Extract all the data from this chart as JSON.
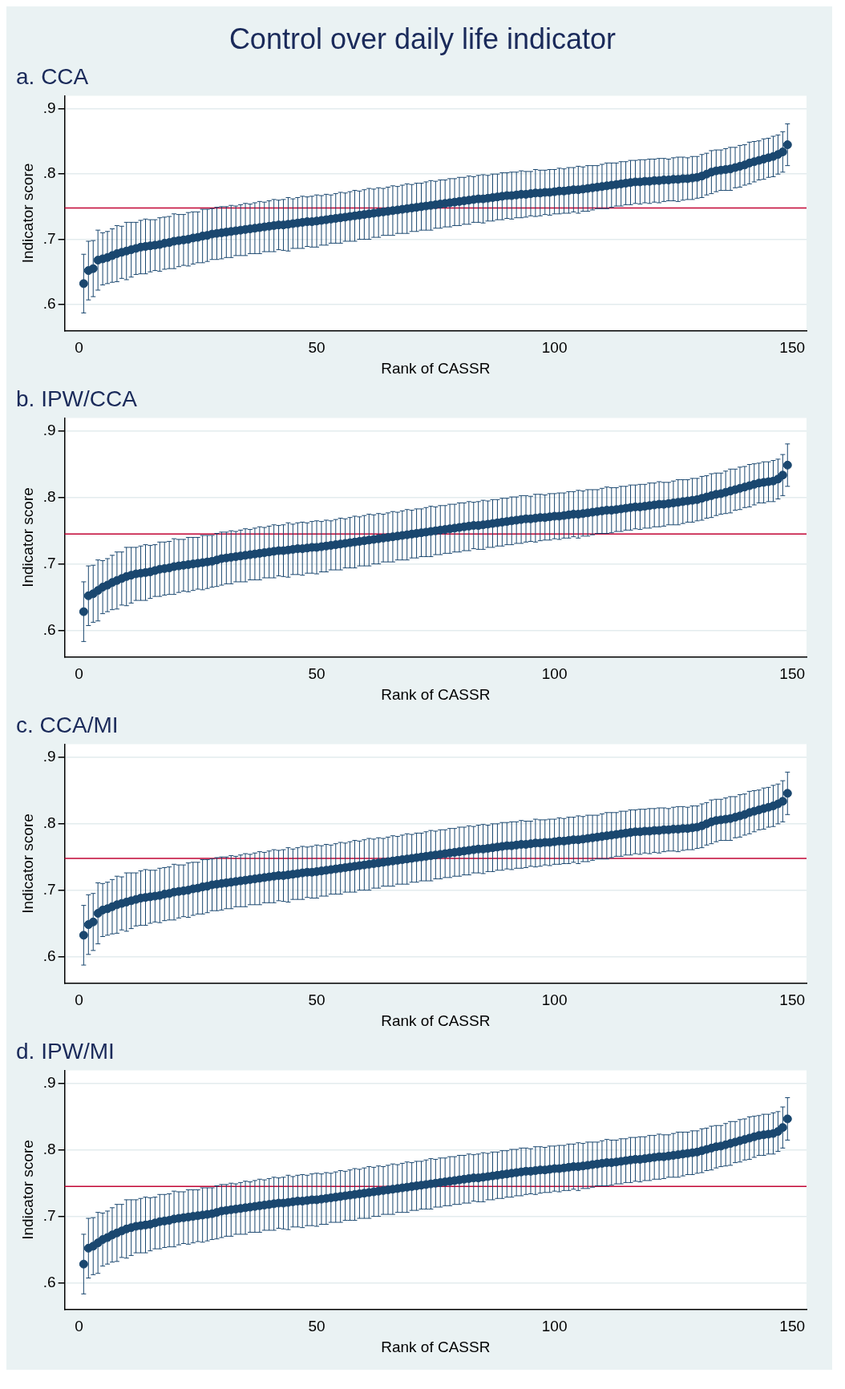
{
  "chart_data": [
    {
      "type": "scatter",
      "title": "Control over daily life indicator",
      "subtitle": "a. CCA",
      "xlabel": "Rank of CASSR",
      "ylabel": "Indicator score",
      "color": "#1a476f",
      "marker": "circle",
      "grid": "y",
      "legend": false,
      "x": [
        1,
        2,
        3,
        4,
        5,
        6,
        7,
        8,
        9,
        10,
        11,
        12,
        13,
        14,
        15,
        16,
        17,
        18,
        19,
        20,
        21,
        22,
        23,
        24,
        25,
        26,
        27,
        28,
        29,
        30,
        31,
        32,
        33,
        34,
        35,
        36,
        37,
        38,
        39,
        40,
        41,
        42,
        43,
        44,
        45,
        46,
        47,
        48,
        49,
        50,
        51,
        52,
        53,
        54,
        55,
        56,
        57,
        58,
        59,
        60,
        61,
        62,
        63,
        64,
        65,
        66,
        67,
        68,
        69,
        70,
        71,
        72,
        73,
        74,
        75,
        76,
        77,
        78,
        79,
        80,
        81,
        82,
        83,
        84,
        85,
        86,
        87,
        88,
        89,
        90,
        91,
        92,
        93,
        94,
        95,
        96,
        97,
        98,
        99,
        100,
        101,
        102,
        103,
        104,
        105,
        106,
        107,
        108,
        109,
        110,
        111,
        112,
        113,
        114,
        115,
        116,
        117,
        118,
        119,
        120,
        121,
        122,
        123,
        124,
        125,
        126,
        127,
        128,
        129,
        130,
        131,
        132,
        133,
        134,
        135,
        136,
        137,
        138,
        139,
        140,
        141,
        142,
        143,
        144,
        145,
        146,
        147,
        148,
        149
      ],
      "values": [
        0.632,
        0.652,
        0.655,
        0.668,
        0.67,
        0.672,
        0.675,
        0.678,
        0.68,
        0.682,
        0.684,
        0.686,
        0.688,
        0.689,
        0.69,
        0.691,
        0.692,
        0.694,
        0.695,
        0.697,
        0.698,
        0.699,
        0.7,
        0.702,
        0.703,
        0.705,
        0.706,
        0.708,
        0.709,
        0.71,
        0.711,
        0.712,
        0.713,
        0.714,
        0.715,
        0.716,
        0.717,
        0.718,
        0.719,
        0.72,
        0.721,
        0.722,
        0.722,
        0.723,
        0.724,
        0.725,
        0.726,
        0.727,
        0.727,
        0.728,
        0.729,
        0.73,
        0.731,
        0.732,
        0.733,
        0.734,
        0.735,
        0.736,
        0.737,
        0.738,
        0.739,
        0.74,
        0.741,
        0.742,
        0.743,
        0.744,
        0.745,
        0.746,
        0.747,
        0.748,
        0.749,
        0.75,
        0.751,
        0.752,
        0.753,
        0.754,
        0.755,
        0.756,
        0.757,
        0.758,
        0.759,
        0.76,
        0.761,
        0.762,
        0.762,
        0.763,
        0.764,
        0.765,
        0.766,
        0.767,
        0.767,
        0.768,
        0.769,
        0.769,
        0.77,
        0.771,
        0.771,
        0.772,
        0.772,
        0.773,
        0.774,
        0.774,
        0.775,
        0.776,
        0.776,
        0.777,
        0.778,
        0.779,
        0.78,
        0.781,
        0.782,
        0.783,
        0.784,
        0.785,
        0.786,
        0.787,
        0.788,
        0.788,
        0.789,
        0.789,
        0.79,
        0.79,
        0.791,
        0.791,
        0.792,
        0.792,
        0.793,
        0.793,
        0.794,
        0.795,
        0.797,
        0.8,
        0.803,
        0.805,
        0.806,
        0.807,
        0.808,
        0.81,
        0.812,
        0.814,
        0.817,
        0.819,
        0.821,
        0.823,
        0.825,
        0.827,
        0.83,
        0.834,
        0.845
      ],
      "errors": [
        0.045,
        0.045,
        0.043,
        0.046,
        0.04,
        0.04,
        0.041,
        0.043,
        0.04,
        0.044,
        0.042,
        0.04,
        0.041,
        0.042,
        0.04,
        0.039,
        0.041,
        0.04,
        0.04,
        0.042,
        0.04,
        0.039,
        0.041,
        0.04,
        0.039,
        0.041,
        0.04,
        0.039,
        0.04,
        0.04,
        0.039,
        0.04,
        0.038,
        0.039,
        0.04,
        0.038,
        0.039,
        0.04,
        0.038,
        0.039,
        0.04,
        0.038,
        0.039,
        0.041,
        0.038,
        0.039,
        0.04,
        0.038,
        0.039,
        0.04,
        0.038,
        0.039,
        0.037,
        0.038,
        0.039,
        0.037,
        0.038,
        0.039,
        0.037,
        0.038,
        0.039,
        0.037,
        0.038,
        0.036,
        0.037,
        0.038,
        0.036,
        0.037,
        0.038,
        0.036,
        0.037,
        0.036,
        0.037,
        0.038,
        0.036,
        0.037,
        0.036,
        0.037,
        0.036,
        0.037,
        0.036,
        0.037,
        0.035,
        0.036,
        0.037,
        0.035,
        0.036,
        0.035,
        0.036,
        0.035,
        0.036,
        0.035,
        0.036,
        0.035,
        0.034,
        0.036,
        0.035,
        0.034,
        0.035,
        0.034,
        0.035,
        0.034,
        0.035,
        0.034,
        0.036,
        0.034,
        0.035,
        0.034,
        0.033,
        0.034,
        0.035,
        0.034,
        0.033,
        0.034,
        0.033,
        0.034,
        0.033,
        0.034,
        0.033,
        0.034,
        0.033,
        0.034,
        0.033,
        0.032,
        0.033,
        0.034,
        0.033,
        0.032,
        0.033,
        0.032,
        0.033,
        0.032,
        0.033,
        0.032,
        0.031,
        0.032,
        0.033,
        0.031,
        0.032,
        0.031,
        0.032,
        0.031,
        0.03,
        0.031,
        0.03,
        0.031,
        0.03,
        0.031,
        0.032
      ],
      "xlim": [
        -3,
        153
      ],
      "xticks": [
        0,
        50,
        100,
        150
      ],
      "ylim": [
        0.56,
        0.92
      ],
      "yticks": [
        {
          "value": 0.6,
          "label": ".6"
        },
        {
          "value": 0.7,
          "label": ".7"
        },
        {
          "value": 0.8,
          "label": ".8"
        },
        {
          "value": 0.9,
          "label": ".9"
        }
      ],
      "ref_lines": [
        {
          "axis": "y",
          "value": 0.748,
          "color": "#c10534"
        }
      ]
    },
    {
      "type": "scatter",
      "subtitle": "b. IPW/CCA",
      "xlabel": "Rank of CASSR",
      "ylabel": "Indicator score",
      "color": "#1a476f",
      "marker": "circle",
      "grid": "y",
      "legend": false,
      "x": [
        1,
        2,
        3,
        4,
        5,
        6,
        7,
        8,
        9,
        10,
        11,
        12,
        13,
        14,
        15,
        16,
        17,
        18,
        19,
        20,
        21,
        22,
        23,
        24,
        25,
        26,
        27,
        28,
        29,
        30,
        31,
        32,
        33,
        34,
        35,
        36,
        37,
        38,
        39,
        40,
        41,
        42,
        43,
        44,
        45,
        46,
        47,
        48,
        49,
        50,
        51,
        52,
        53,
        54,
        55,
        56,
        57,
        58,
        59,
        60,
        61,
        62,
        63,
        64,
        65,
        66,
        67,
        68,
        69,
        70,
        71,
        72,
        73,
        74,
        75,
        76,
        77,
        78,
        79,
        80,
        81,
        82,
        83,
        84,
        85,
        86,
        87,
        88,
        89,
        90,
        91,
        92,
        93,
        94,
        95,
        96,
        97,
        98,
        99,
        100,
        101,
        102,
        103,
        104,
        105,
        106,
        107,
        108,
        109,
        110,
        111,
        112,
        113,
        114,
        115,
        116,
        117,
        118,
        119,
        120,
        121,
        122,
        123,
        124,
        125,
        126,
        127,
        128,
        129,
        130,
        131,
        132,
        133,
        134,
        135,
        136,
        137,
        138,
        139,
        140,
        141,
        142,
        143,
        144,
        145,
        146,
        147,
        148,
        149
      ],
      "values": [
        0.628,
        0.652,
        0.655,
        0.66,
        0.665,
        0.668,
        0.672,
        0.675,
        0.678,
        0.681,
        0.683,
        0.685,
        0.686,
        0.687,
        0.688,
        0.69,
        0.692,
        0.693,
        0.694,
        0.696,
        0.697,
        0.698,
        0.699,
        0.7,
        0.701,
        0.702,
        0.703,
        0.704,
        0.706,
        0.708,
        0.709,
        0.71,
        0.711,
        0.712,
        0.713,
        0.714,
        0.715,
        0.716,
        0.717,
        0.718,
        0.719,
        0.72,
        0.72,
        0.721,
        0.722,
        0.723,
        0.723,
        0.724,
        0.725,
        0.725,
        0.726,
        0.727,
        0.728,
        0.729,
        0.73,
        0.731,
        0.732,
        0.733,
        0.734,
        0.735,
        0.736,
        0.737,
        0.738,
        0.739,
        0.74,
        0.741,
        0.742,
        0.743,
        0.744,
        0.745,
        0.746,
        0.747,
        0.748,
        0.749,
        0.75,
        0.751,
        0.752,
        0.753,
        0.754,
        0.755,
        0.756,
        0.757,
        0.758,
        0.758,
        0.759,
        0.76,
        0.761,
        0.762,
        0.763,
        0.764,
        0.765,
        0.766,
        0.767,
        0.768,
        0.768,
        0.769,
        0.77,
        0.77,
        0.771,
        0.772,
        0.772,
        0.773,
        0.774,
        0.775,
        0.775,
        0.776,
        0.777,
        0.778,
        0.779,
        0.78,
        0.781,
        0.781,
        0.782,
        0.783,
        0.784,
        0.785,
        0.786,
        0.786,
        0.787,
        0.788,
        0.789,
        0.79,
        0.79,
        0.791,
        0.792,
        0.793,
        0.794,
        0.795,
        0.796,
        0.797,
        0.799,
        0.801,
        0.803,
        0.805,
        0.806,
        0.808,
        0.81,
        0.812,
        0.814,
        0.816,
        0.818,
        0.82,
        0.822,
        0.823,
        0.824,
        0.825,
        0.828,
        0.834,
        0.849
      ],
      "errors": [
        0.045,
        0.045,
        0.043,
        0.046,
        0.04,
        0.04,
        0.041,
        0.043,
        0.04,
        0.044,
        0.042,
        0.04,
        0.041,
        0.042,
        0.04,
        0.039,
        0.041,
        0.04,
        0.04,
        0.042,
        0.04,
        0.039,
        0.041,
        0.04,
        0.039,
        0.041,
        0.04,
        0.039,
        0.04,
        0.04,
        0.039,
        0.04,
        0.038,
        0.039,
        0.04,
        0.038,
        0.039,
        0.04,
        0.038,
        0.039,
        0.04,
        0.038,
        0.039,
        0.041,
        0.038,
        0.039,
        0.04,
        0.038,
        0.039,
        0.04,
        0.038,
        0.039,
        0.037,
        0.038,
        0.039,
        0.037,
        0.038,
        0.039,
        0.037,
        0.038,
        0.039,
        0.037,
        0.038,
        0.036,
        0.037,
        0.038,
        0.036,
        0.037,
        0.038,
        0.036,
        0.037,
        0.036,
        0.037,
        0.038,
        0.036,
        0.037,
        0.036,
        0.037,
        0.036,
        0.037,
        0.036,
        0.037,
        0.035,
        0.036,
        0.037,
        0.035,
        0.036,
        0.035,
        0.036,
        0.035,
        0.036,
        0.035,
        0.036,
        0.035,
        0.034,
        0.036,
        0.035,
        0.034,
        0.035,
        0.034,
        0.035,
        0.034,
        0.035,
        0.034,
        0.036,
        0.034,
        0.035,
        0.034,
        0.033,
        0.034,
        0.035,
        0.034,
        0.033,
        0.034,
        0.033,
        0.034,
        0.033,
        0.034,
        0.033,
        0.034,
        0.033,
        0.034,
        0.033,
        0.032,
        0.033,
        0.034,
        0.033,
        0.032,
        0.033,
        0.032,
        0.033,
        0.032,
        0.033,
        0.032,
        0.031,
        0.032,
        0.033,
        0.031,
        0.032,
        0.031,
        0.032,
        0.031,
        0.03,
        0.031,
        0.03,
        0.031,
        0.03,
        0.031,
        0.032
      ],
      "xlim": [
        -3,
        153
      ],
      "xticks": [
        0,
        50,
        100,
        150
      ],
      "ylim": [
        0.56,
        0.92
      ],
      "yticks": [
        {
          "value": 0.6,
          "label": ".6"
        },
        {
          "value": 0.7,
          "label": ".7"
        },
        {
          "value": 0.8,
          "label": ".8"
        },
        {
          "value": 0.9,
          "label": ".9"
        }
      ],
      "ref_lines": [
        {
          "axis": "y",
          "value": 0.745,
          "color": "#c10534"
        }
      ]
    },
    {
      "type": "scatter",
      "subtitle": "c. CCA/MI",
      "xlabel": "Rank of CASSR",
      "ylabel": "Indicator score",
      "color": "#1a476f",
      "marker": "circle",
      "grid": "y",
      "legend": false,
      "x": [
        1,
        2,
        3,
        4,
        5,
        6,
        7,
        8,
        9,
        10,
        11,
        12,
        13,
        14,
        15,
        16,
        17,
        18,
        19,
        20,
        21,
        22,
        23,
        24,
        25,
        26,
        27,
        28,
        29,
        30,
        31,
        32,
        33,
        34,
        35,
        36,
        37,
        38,
        39,
        40,
        41,
        42,
        43,
        44,
        45,
        46,
        47,
        48,
        49,
        50,
        51,
        52,
        53,
        54,
        55,
        56,
        57,
        58,
        59,
        60,
        61,
        62,
        63,
        64,
        65,
        66,
        67,
        68,
        69,
        70,
        71,
        72,
        73,
        74,
        75,
        76,
        77,
        78,
        79,
        80,
        81,
        82,
        83,
        84,
        85,
        86,
        87,
        88,
        89,
        90,
        91,
        92,
        93,
        94,
        95,
        96,
        97,
        98,
        99,
        100,
        101,
        102,
        103,
        104,
        105,
        106,
        107,
        108,
        109,
        110,
        111,
        112,
        113,
        114,
        115,
        116,
        117,
        118,
        119,
        120,
        121,
        122,
        123,
        124,
        125,
        126,
        127,
        128,
        129,
        130,
        131,
        132,
        133,
        134,
        135,
        136,
        137,
        138,
        139,
        140,
        141,
        142,
        143,
        144,
        145,
        146,
        147,
        148,
        149
      ],
      "values": [
        0.632,
        0.648,
        0.652,
        0.665,
        0.67,
        0.672,
        0.675,
        0.678,
        0.68,
        0.682,
        0.684,
        0.686,
        0.688,
        0.689,
        0.69,
        0.691,
        0.692,
        0.694,
        0.695,
        0.697,
        0.698,
        0.699,
        0.7,
        0.702,
        0.703,
        0.705,
        0.706,
        0.708,
        0.709,
        0.71,
        0.711,
        0.712,
        0.713,
        0.714,
        0.715,
        0.716,
        0.717,
        0.718,
        0.719,
        0.72,
        0.721,
        0.722,
        0.722,
        0.723,
        0.724,
        0.725,
        0.726,
        0.727,
        0.727,
        0.728,
        0.729,
        0.73,
        0.731,
        0.732,
        0.733,
        0.734,
        0.735,
        0.736,
        0.737,
        0.738,
        0.739,
        0.74,
        0.741,
        0.742,
        0.743,
        0.744,
        0.745,
        0.746,
        0.747,
        0.748,
        0.749,
        0.75,
        0.751,
        0.752,
        0.753,
        0.754,
        0.755,
        0.756,
        0.757,
        0.758,
        0.759,
        0.76,
        0.761,
        0.762,
        0.762,
        0.763,
        0.764,
        0.765,
        0.766,
        0.767,
        0.767,
        0.768,
        0.769,
        0.769,
        0.77,
        0.771,
        0.771,
        0.772,
        0.772,
        0.773,
        0.774,
        0.774,
        0.775,
        0.776,
        0.776,
        0.777,
        0.778,
        0.779,
        0.78,
        0.781,
        0.782,
        0.783,
        0.784,
        0.785,
        0.786,
        0.787,
        0.788,
        0.788,
        0.789,
        0.789,
        0.79,
        0.79,
        0.791,
        0.791,
        0.792,
        0.792,
        0.793,
        0.793,
        0.794,
        0.795,
        0.797,
        0.8,
        0.803,
        0.805,
        0.806,
        0.807,
        0.808,
        0.81,
        0.812,
        0.814,
        0.817,
        0.819,
        0.821,
        0.823,
        0.825,
        0.827,
        0.83,
        0.834,
        0.846
      ],
      "errors": [
        0.045,
        0.045,
        0.043,
        0.046,
        0.04,
        0.04,
        0.041,
        0.043,
        0.04,
        0.044,
        0.042,
        0.04,
        0.041,
        0.042,
        0.04,
        0.039,
        0.041,
        0.04,
        0.04,
        0.042,
        0.04,
        0.039,
        0.041,
        0.04,
        0.039,
        0.041,
        0.04,
        0.039,
        0.04,
        0.04,
        0.039,
        0.04,
        0.038,
        0.039,
        0.04,
        0.038,
        0.039,
        0.04,
        0.038,
        0.039,
        0.04,
        0.038,
        0.039,
        0.041,
        0.038,
        0.039,
        0.04,
        0.038,
        0.039,
        0.04,
        0.038,
        0.039,
        0.037,
        0.038,
        0.039,
        0.037,
        0.038,
        0.039,
        0.037,
        0.038,
        0.039,
        0.037,
        0.038,
        0.036,
        0.037,
        0.038,
        0.036,
        0.037,
        0.038,
        0.036,
        0.037,
        0.036,
        0.037,
        0.038,
        0.036,
        0.037,
        0.036,
        0.037,
        0.036,
        0.037,
        0.036,
        0.037,
        0.035,
        0.036,
        0.037,
        0.035,
        0.036,
        0.035,
        0.036,
        0.035,
        0.036,
        0.035,
        0.036,
        0.035,
        0.034,
        0.036,
        0.035,
        0.034,
        0.035,
        0.034,
        0.035,
        0.034,
        0.035,
        0.034,
        0.036,
        0.034,
        0.035,
        0.034,
        0.033,
        0.034,
        0.035,
        0.034,
        0.033,
        0.034,
        0.033,
        0.034,
        0.033,
        0.034,
        0.033,
        0.034,
        0.033,
        0.034,
        0.033,
        0.032,
        0.033,
        0.034,
        0.033,
        0.032,
        0.033,
        0.032,
        0.033,
        0.032,
        0.033,
        0.032,
        0.031,
        0.032,
        0.033,
        0.031,
        0.032,
        0.031,
        0.032,
        0.031,
        0.03,
        0.031,
        0.03,
        0.031,
        0.03,
        0.031,
        0.032
      ],
      "xlim": [
        -3,
        153
      ],
      "xticks": [
        0,
        50,
        100,
        150
      ],
      "ylim": [
        0.56,
        0.92
      ],
      "yticks": [
        {
          "value": 0.6,
          "label": ".6"
        },
        {
          "value": 0.7,
          "label": ".7"
        },
        {
          "value": 0.8,
          "label": ".8"
        },
        {
          "value": 0.9,
          "label": ".9"
        }
      ],
      "ref_lines": [
        {
          "axis": "y",
          "value": 0.748,
          "color": "#c10534"
        }
      ]
    },
    {
      "type": "scatter",
      "subtitle": "d. IPW/MI",
      "xlabel": "Rank of CASSR",
      "ylabel": "Indicator score",
      "color": "#1a476f",
      "marker": "circle",
      "grid": "y",
      "legend": false,
      "x": [
        1,
        2,
        3,
        4,
        5,
        6,
        7,
        8,
        9,
        10,
        11,
        12,
        13,
        14,
        15,
        16,
        17,
        18,
        19,
        20,
        21,
        22,
        23,
        24,
        25,
        26,
        27,
        28,
        29,
        30,
        31,
        32,
        33,
        34,
        35,
        36,
        37,
        38,
        39,
        40,
        41,
        42,
        43,
        44,
        45,
        46,
        47,
        48,
        49,
        50,
        51,
        52,
        53,
        54,
        55,
        56,
        57,
        58,
        59,
        60,
        61,
        62,
        63,
        64,
        65,
        66,
        67,
        68,
        69,
        70,
        71,
        72,
        73,
        74,
        75,
        76,
        77,
        78,
        79,
        80,
        81,
        82,
        83,
        84,
        85,
        86,
        87,
        88,
        89,
        90,
        91,
        92,
        93,
        94,
        95,
        96,
        97,
        98,
        99,
        100,
        101,
        102,
        103,
        104,
        105,
        106,
        107,
        108,
        109,
        110,
        111,
        112,
        113,
        114,
        115,
        116,
        117,
        118,
        119,
        120,
        121,
        122,
        123,
        124,
        125,
        126,
        127,
        128,
        129,
        130,
        131,
        132,
        133,
        134,
        135,
        136,
        137,
        138,
        139,
        140,
        141,
        142,
        143,
        144,
        145,
        146,
        147,
        148,
        149
      ],
      "values": [
        0.628,
        0.652,
        0.655,
        0.66,
        0.665,
        0.668,
        0.672,
        0.675,
        0.678,
        0.681,
        0.683,
        0.685,
        0.686,
        0.687,
        0.688,
        0.69,
        0.692,
        0.693,
        0.694,
        0.696,
        0.697,
        0.698,
        0.699,
        0.7,
        0.701,
        0.702,
        0.703,
        0.704,
        0.706,
        0.708,
        0.709,
        0.71,
        0.711,
        0.712,
        0.713,
        0.714,
        0.715,
        0.716,
        0.717,
        0.718,
        0.719,
        0.72,
        0.72,
        0.721,
        0.722,
        0.723,
        0.723,
        0.724,
        0.725,
        0.725,
        0.726,
        0.727,
        0.728,
        0.729,
        0.73,
        0.731,
        0.732,
        0.733,
        0.734,
        0.735,
        0.736,
        0.737,
        0.738,
        0.739,
        0.74,
        0.741,
        0.742,
        0.743,
        0.744,
        0.745,
        0.746,
        0.747,
        0.748,
        0.749,
        0.75,
        0.751,
        0.752,
        0.753,
        0.754,
        0.755,
        0.756,
        0.757,
        0.758,
        0.758,
        0.759,
        0.76,
        0.761,
        0.762,
        0.763,
        0.764,
        0.765,
        0.766,
        0.767,
        0.768,
        0.768,
        0.769,
        0.77,
        0.77,
        0.771,
        0.772,
        0.772,
        0.773,
        0.774,
        0.775,
        0.775,
        0.776,
        0.777,
        0.778,
        0.779,
        0.78,
        0.781,
        0.781,
        0.782,
        0.783,
        0.784,
        0.785,
        0.786,
        0.786,
        0.787,
        0.788,
        0.789,
        0.79,
        0.79,
        0.791,
        0.792,
        0.793,
        0.794,
        0.795,
        0.796,
        0.797,
        0.799,
        0.801,
        0.803,
        0.805,
        0.806,
        0.808,
        0.81,
        0.812,
        0.814,
        0.816,
        0.818,
        0.82,
        0.822,
        0.823,
        0.824,
        0.825,
        0.828,
        0.834,
        0.847
      ],
      "errors": [
        0.045,
        0.045,
        0.043,
        0.046,
        0.04,
        0.04,
        0.041,
        0.043,
        0.04,
        0.044,
        0.042,
        0.04,
        0.041,
        0.042,
        0.04,
        0.039,
        0.041,
        0.04,
        0.04,
        0.042,
        0.04,
        0.039,
        0.041,
        0.04,
        0.039,
        0.041,
        0.04,
        0.039,
        0.04,
        0.04,
        0.039,
        0.04,
        0.038,
        0.039,
        0.04,
        0.038,
        0.039,
        0.04,
        0.038,
        0.039,
        0.04,
        0.038,
        0.039,
        0.041,
        0.038,
        0.039,
        0.04,
        0.038,
        0.039,
        0.04,
        0.038,
        0.039,
        0.037,
        0.038,
        0.039,
        0.037,
        0.038,
        0.039,
        0.037,
        0.038,
        0.039,
        0.037,
        0.038,
        0.036,
        0.037,
        0.038,
        0.036,
        0.037,
        0.038,
        0.036,
        0.037,
        0.036,
        0.037,
        0.038,
        0.036,
        0.037,
        0.036,
        0.037,
        0.036,
        0.037,
        0.036,
        0.037,
        0.035,
        0.036,
        0.037,
        0.035,
        0.036,
        0.035,
        0.036,
        0.035,
        0.036,
        0.035,
        0.036,
        0.035,
        0.034,
        0.036,
        0.035,
        0.034,
        0.035,
        0.034,
        0.035,
        0.034,
        0.035,
        0.034,
        0.036,
        0.034,
        0.035,
        0.034,
        0.033,
        0.034,
        0.035,
        0.034,
        0.033,
        0.034,
        0.033,
        0.034,
        0.033,
        0.034,
        0.033,
        0.034,
        0.033,
        0.034,
        0.033,
        0.032,
        0.033,
        0.034,
        0.033,
        0.032,
        0.033,
        0.032,
        0.033,
        0.032,
        0.033,
        0.032,
        0.031,
        0.032,
        0.033,
        0.031,
        0.032,
        0.031,
        0.032,
        0.031,
        0.03,
        0.031,
        0.03,
        0.031,
        0.03,
        0.031,
        0.032
      ],
      "xlim": [
        -3,
        153
      ],
      "xticks": [
        0,
        50,
        100,
        150
      ],
      "ylim": [
        0.56,
        0.92
      ],
      "yticks": [
        {
          "value": 0.6,
          "label": ".6"
        },
        {
          "value": 0.7,
          "label": ".7"
        },
        {
          "value": 0.8,
          "label": ".8"
        },
        {
          "value": 0.9,
          "label": ".9"
        }
      ],
      "ref_lines": [
        {
          "axis": "y",
          "value": 0.745,
          "color": "#c10534"
        }
      ]
    }
  ]
}
